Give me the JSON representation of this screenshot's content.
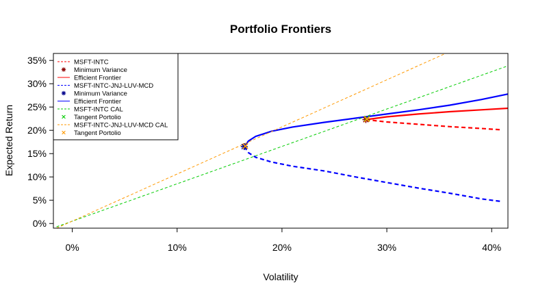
{
  "chart_data": {
    "type": "line",
    "title": "Portfolio Frontiers",
    "xlabel": "Volatility",
    "ylabel": "Expected Return",
    "xlim": [
      -0.018,
      0.4155
    ],
    "ylim": [
      -0.01,
      0.365
    ],
    "x_ticks": [
      0,
      0.1,
      0.2,
      0.3,
      0.4
    ],
    "x_tick_labels": [
      "0%",
      "10%",
      "20%",
      "30%",
      "40%"
    ],
    "y_ticks": [
      0,
      0.05,
      0.1,
      0.15,
      0.2,
      0.25,
      0.3,
      0.35
    ],
    "y_tick_labels": [
      "0%",
      "5%",
      "10%",
      "15%",
      "20%",
      "25%",
      "30%",
      "35%"
    ],
    "grid": false,
    "legend_position": "top-left",
    "legend": [
      {
        "label": "MSFT-INTC",
        "kind": "line",
        "dash": "dashed",
        "color": "#ff0000"
      },
      {
        "label": "Minimum Variance",
        "kind": "point",
        "symbol": "asterisk",
        "color": "#8b0000"
      },
      {
        "label": "Efficient Frontier",
        "kind": "line",
        "dash": "solid",
        "color": "#ff0000"
      },
      {
        "label": "MSFT-INTC-JNJ-LUV-MCD",
        "kind": "line",
        "dash": "dashed",
        "color": "#0000ff"
      },
      {
        "label": "Minimum Variance",
        "kind": "point",
        "symbol": "asterisk",
        "color": "#00008b"
      },
      {
        "label": "Efficient Frontier",
        "kind": "line",
        "dash": "solid",
        "color": "#0000ff"
      },
      {
        "label": "MSFT-INTC CAL",
        "kind": "line",
        "dash": "dashed",
        "color": "#00cc00"
      },
      {
        "label": "Tangent Portolio",
        "kind": "point",
        "symbol": "cross",
        "color": "#00cc00"
      },
      {
        "label": "MSFT-INTC-JNJ-LUV-MCD CAL",
        "kind": "line",
        "dash": "dashed",
        "color": "#ff9900"
      },
      {
        "label": "Tangent Portolio",
        "kind": "point",
        "symbol": "cross",
        "color": "#ff9900"
      }
    ],
    "series": [
      {
        "name": "MSFT-INTC",
        "role": "inefficient",
        "color": "#ff0000",
        "dash": "dashed",
        "x": [
          0.28,
          0.3,
          0.33,
          0.36,
          0.39,
          0.41
        ],
        "y": [
          0.223,
          0.218,
          0.213,
          0.208,
          0.204,
          0.201
        ]
      },
      {
        "name": "Efficient Frontier",
        "role": "efficient",
        "color": "#ff0000",
        "dash": "solid",
        "x": [
          0.28,
          0.3,
          0.33,
          0.36,
          0.39,
          0.42
        ],
        "y": [
          0.223,
          0.229,
          0.235,
          0.24,
          0.244,
          0.248
        ]
      },
      {
        "name": "MSFT-INTC-JNJ-LUV-MCD",
        "role": "inefficient",
        "color": "#0000ff",
        "dash": "dashed",
        "x": [
          0.164,
          0.168,
          0.175,
          0.19,
          0.21,
          0.24,
          0.27,
          0.3,
          0.33,
          0.36,
          0.39,
          0.41
        ],
        "y": [
          0.165,
          0.152,
          0.142,
          0.132,
          0.123,
          0.113,
          0.1,
          0.088,
          0.076,
          0.065,
          0.053,
          0.047
        ]
      },
      {
        "name": "Efficient Frontier",
        "role": "efficient",
        "color": "#0000ff",
        "dash": "solid",
        "x": [
          0.164,
          0.168,
          0.175,
          0.19,
          0.21,
          0.24,
          0.27,
          0.3,
          0.33,
          0.36,
          0.39,
          0.42
        ],
        "y": [
          0.165,
          0.177,
          0.187,
          0.198,
          0.207,
          0.217,
          0.226,
          0.235,
          0.244,
          0.254,
          0.266,
          0.28
        ]
      },
      {
        "name": "MSFT-INTC CAL",
        "role": "cal",
        "color": "#00cc00",
        "dash": "dashed",
        "x": [
          -0.015,
          0.415
        ],
        "y": [
          -0.007,
          0.338
        ]
      },
      {
        "name": "MSFT-INTC-JNJ-LUV-MCD CAL",
        "role": "cal",
        "color": "#ff9900",
        "dash": "dashed",
        "x": [
          -0.015,
          0.356
        ],
        "y": [
          -0.01,
          0.365
        ]
      }
    ],
    "points": [
      {
        "label": "Minimum Variance",
        "symbol": "asterisk",
        "color": "#8b0000",
        "x": 0.28,
        "y": 0.223
      },
      {
        "label": "Tangent Portolio",
        "symbol": "cross",
        "color": "#00cc00",
        "x": 0.281,
        "y": 0.225
      },
      {
        "label": "Tangent Portolio",
        "symbol": "cross",
        "color": "#ff9900",
        "x": 0.281,
        "y": 0.224
      },
      {
        "label": "Minimum Variance",
        "symbol": "asterisk",
        "color": "#00008b",
        "x": 0.164,
        "y": 0.165
      },
      {
        "label": "Tangent Portolio",
        "symbol": "cross",
        "color": "#ff9900",
        "x": 0.165,
        "y": 0.166
      }
    ]
  }
}
